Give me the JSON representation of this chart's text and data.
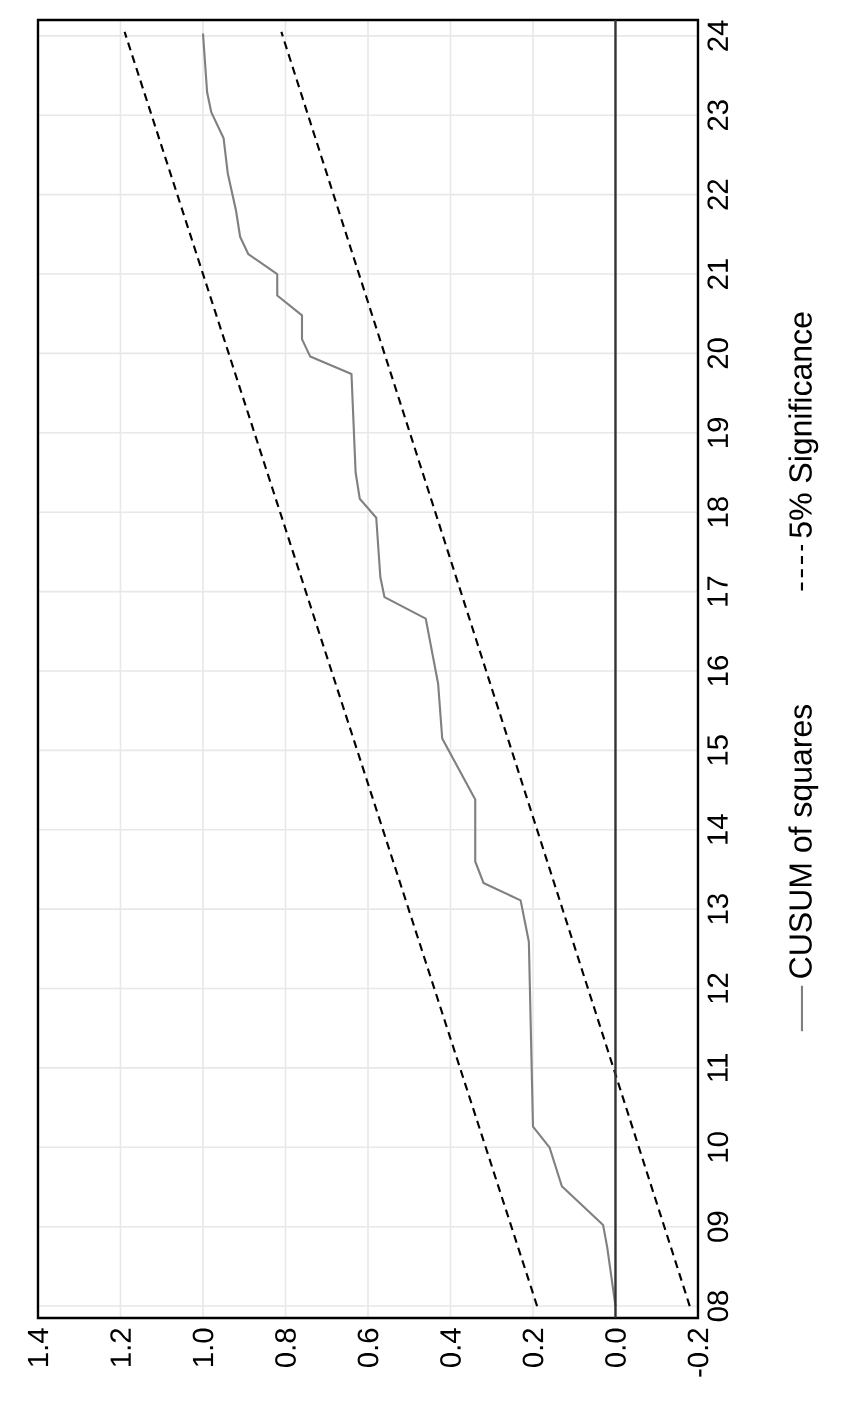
{
  "chart_data": {
    "type": "line",
    "xlim": [
      1.4,
      -0.2
    ],
    "ylim": [
      7.85,
      24.2
    ],
    "yticks": [
      {
        "value": 8,
        "label": "08"
      },
      {
        "value": 9,
        "label": "09"
      },
      {
        "value": 10,
        "label": "10"
      },
      {
        "value": 11,
        "label": "11"
      },
      {
        "value": 12,
        "label": "12"
      },
      {
        "value": 13,
        "label": "13"
      },
      {
        "value": 14,
        "label": "14"
      },
      {
        "value": 15,
        "label": "15"
      },
      {
        "value": 16,
        "label": "16"
      },
      {
        "value": 17,
        "label": "17"
      },
      {
        "value": 18,
        "label": "18"
      },
      {
        "value": 19,
        "label": "19"
      },
      {
        "value": 20,
        "label": "20"
      },
      {
        "value": 21,
        "label": "21"
      },
      {
        "value": 22,
        "label": "22"
      },
      {
        "value": 23,
        "label": "23"
      },
      {
        "value": 24,
        "label": "24"
      }
    ],
    "xticks": [
      {
        "value": 1.4,
        "label": "1.4"
      },
      {
        "value": 1.2,
        "label": "1.2"
      },
      {
        "value": 1.0,
        "label": "1.0"
      },
      {
        "value": 0.8,
        "label": "0.8"
      },
      {
        "value": 0.6,
        "label": "0.6"
      },
      {
        "value": 0.4,
        "label": "0.4"
      },
      {
        "value": 0.2,
        "label": "0.2"
      },
      {
        "value": 0,
        "label": "0.0"
      },
      {
        "value": -0.2,
        "label": "-0.2"
      }
    ],
    "grid": true,
    "legend": "right",
    "ref_lines": [
      {
        "axis": "x",
        "value": 0,
        "color": "#333333"
      }
    ],
    "series": [
      {
        "name": "CUSUM of squares",
        "color": "#808080",
        "line_style": "solid",
        "values": [
          8.0,
          8.74,
          9.02,
          9.51,
          10.0,
          10.26,
          12.59,
          13.11,
          13.33,
          13.6,
          14.38,
          15.15,
          15.84,
          16.66,
          16.93,
          17.18,
          17.93,
          18.17,
          18.5,
          19.74,
          19.96,
          20.18,
          20.48,
          20.73,
          21.0,
          21.25,
          21.47,
          21.8,
          22.27,
          22.71,
          23.04,
          23.29,
          24.03
        ],
        "x": [
          0.0,
          0.02,
          0.03,
          0.13,
          0.16,
          0.2,
          0.21,
          0.23,
          0.32,
          0.34,
          0.34,
          0.42,
          0.43,
          0.46,
          0.56,
          0.57,
          0.58,
          0.62,
          0.63,
          0.64,
          0.74,
          0.76,
          0.76,
          0.82,
          0.82,
          0.89,
          0.91,
          0.92,
          0.94,
          0.95,
          0.98,
          0.99,
          1.0
        ]
      },
      {
        "name": "5% Significance",
        "color": "#000000",
        "line_style": "dashed",
        "values": [
          8.0,
          24.05
        ],
        "x": [
          0.19,
          1.19
        ]
      },
      {
        "color": "#000000",
        "line_style": "dashed",
        "values": [
          8.0,
          24.05
        ],
        "x": [
          -0.18,
          0.81
        ]
      }
    ]
  }
}
